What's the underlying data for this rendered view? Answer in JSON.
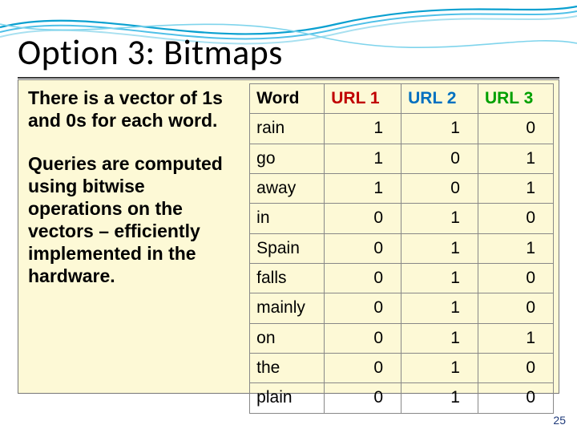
{
  "title": "Option 3: Bitmaps",
  "para1": "There is a vector of 1s and 0s for each word.",
  "para2": "Queries are computed using bitwise operations on the vectors – efficiently implemented in the hardware.",
  "table": {
    "headers": {
      "word": "Word",
      "u1": "URL 1",
      "u2": "URL 2",
      "u3": "URL 3"
    },
    "header_colors": {
      "word": "#000000",
      "u1": "#c00000",
      "u2": "#0070c0",
      "u3": "#00a000"
    },
    "rows": [
      {
        "w": "rain",
        "u1": 1,
        "u2": 1,
        "u3": 0
      },
      {
        "w": "go",
        "u1": 1,
        "u2": 0,
        "u3": 1
      },
      {
        "w": "away",
        "u1": 1,
        "u2": 0,
        "u3": 1
      },
      {
        "w": "in",
        "u1": 0,
        "u2": 1,
        "u3": 0
      },
      {
        "w": "Spain",
        "u1": 0,
        "u2": 1,
        "u3": 1
      },
      {
        "w": "falls",
        "u1": 0,
        "u2": 1,
        "u3": 0
      },
      {
        "w": "mainly",
        "u1": 0,
        "u2": 1,
        "u3": 0
      },
      {
        "w": "on",
        "u1": 0,
        "u2": 1,
        "u3": 1
      },
      {
        "w": "the",
        "u1": 0,
        "u2": 1,
        "u3": 0
      },
      {
        "w": "plain",
        "u1": 0,
        "u2": 1,
        "u3": 0
      }
    ]
  },
  "page_number": "25",
  "style": {
    "bg": "#ffffff",
    "callout_bg": "#fdf9d6",
    "border": "#888888",
    "title_fontsize": 44,
    "body_fontsize": 23,
    "table_fontsize": 21,
    "wave_colors": [
      "#0aa0d0",
      "#4fc0e8",
      "#a8e0f0"
    ]
  }
}
